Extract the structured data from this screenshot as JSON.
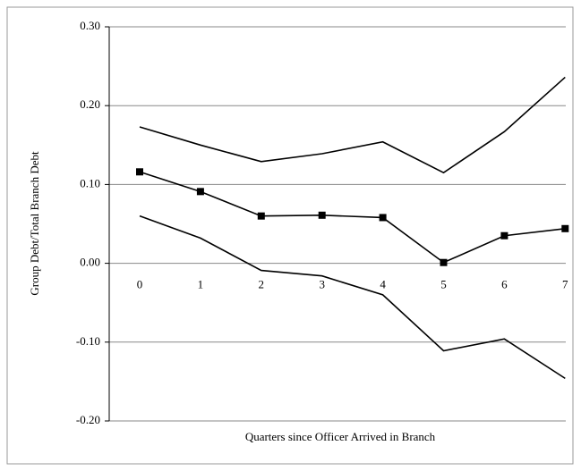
{
  "chart_data": {
    "type": "line",
    "x_label": "Quarters since Officer Arrived in Branch",
    "y_label": "Group Debt/Total Branch Debt",
    "categories": [
      "0",
      "1",
      "2",
      "3",
      "4",
      "5",
      "6",
      "7"
    ],
    "series": [
      {
        "color": "#000000",
        "marker": "none",
        "values": [
          0.173,
          0.15,
          0.129,
          0.139,
          0.154,
          0.115,
          0.167,
          0.236
        ]
      },
      {
        "color": "#000000",
        "marker": "square",
        "values": [
          0.116,
          0.091,
          0.06,
          0.061,
          0.058,
          0.001,
          0.035,
          0.044
        ]
      },
      {
        "color": "#000000",
        "marker": "none",
        "values": [
          0.06,
          0.032,
          -0.009,
          -0.016,
          -0.04,
          -0.111,
          -0.096,
          -0.146
        ]
      }
    ],
    "ylim": [
      -0.2,
      0.3
    ],
    "yticks": [
      {
        "value": -0.2,
        "label": "-0.20"
      },
      {
        "value": -0.1,
        "label": "-0.10"
      },
      {
        "value": 0,
        "label": "0.00"
      },
      {
        "value": 0.1,
        "label": "0.10"
      },
      {
        "value": 0.2,
        "label": "0.20"
      },
      {
        "value": 0.3,
        "label": "0.30"
      }
    ],
    "grid": true
  }
}
